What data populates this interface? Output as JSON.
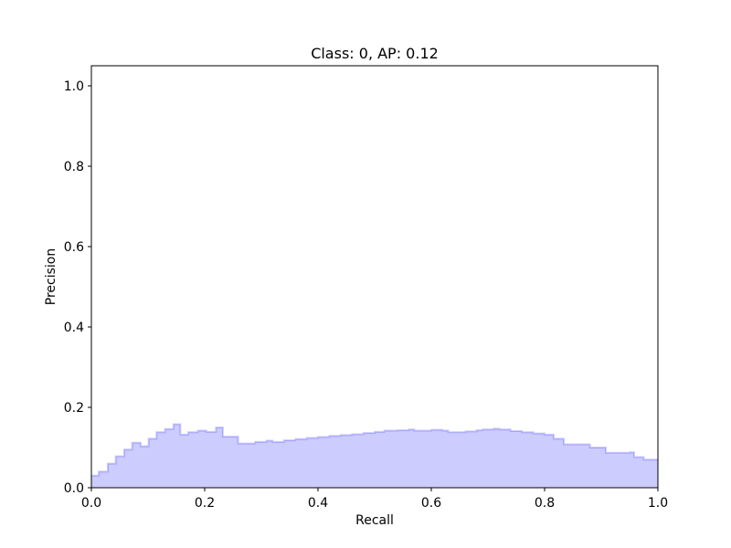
{
  "chart_data": {
    "type": "area",
    "title": "Class: 0, AP: 0.12",
    "xlabel": "Recall",
    "ylabel": "Precision",
    "xlim": [
      0.0,
      1.0
    ],
    "ylim": [
      0.0,
      1.05
    ],
    "grid": false,
    "step": "post",
    "fill_color": "#0000ff",
    "fill_alpha": 0.2,
    "line_color": "#0000ff",
    "line_alpha": 0.2,
    "x_ticks": [
      0.0,
      0.2,
      0.4,
      0.6,
      0.8,
      1.0
    ],
    "x_tick_labels": [
      "0.0",
      "0.2",
      "0.4",
      "0.6",
      "0.8",
      "1.0"
    ],
    "y_ticks": [
      0.0,
      0.2,
      0.4,
      0.6,
      0.8,
      1.0
    ],
    "y_tick_labels": [
      "0.0",
      "0.2",
      "0.4",
      "0.6",
      "0.8",
      "1.0"
    ],
    "recall": [
      0.0,
      0.013,
      0.029,
      0.043,
      0.058,
      0.072,
      0.087,
      0.101,
      0.115,
      0.13,
      0.145,
      0.157,
      0.171,
      0.188,
      0.203,
      0.22,
      0.232,
      0.259,
      0.289,
      0.309,
      0.32,
      0.34,
      0.36,
      0.38,
      0.4,
      0.42,
      0.44,
      0.46,
      0.48,
      0.5,
      0.517,
      0.54,
      0.56,
      0.57,
      0.6,
      0.62,
      0.63,
      0.66,
      0.68,
      0.69,
      0.71,
      0.72,
      0.74,
      0.76,
      0.78,
      0.8,
      0.816,
      0.834,
      0.88,
      0.908,
      0.95,
      0.958,
      0.975,
      1.0
    ],
    "precision": [
      0.03,
      0.04,
      0.06,
      0.078,
      0.095,
      0.112,
      0.103,
      0.122,
      0.138,
      0.146,
      0.158,
      0.132,
      0.138,
      0.142,
      0.139,
      0.15,
      0.127,
      0.11,
      0.114,
      0.117,
      0.114,
      0.118,
      0.121,
      0.124,
      0.126,
      0.129,
      0.131,
      0.133,
      0.136,
      0.139,
      0.142,
      0.143,
      0.145,
      0.142,
      0.144,
      0.142,
      0.138,
      0.14,
      0.143,
      0.145,
      0.147,
      0.145,
      0.141,
      0.138,
      0.135,
      0.132,
      0.122,
      0.108,
      0.1,
      0.087,
      0.088,
      0.076,
      0.07,
      0.07
    ]
  }
}
